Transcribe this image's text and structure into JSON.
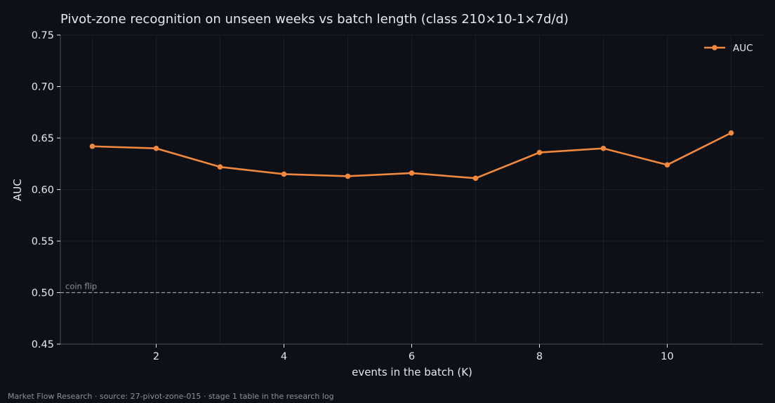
{
  "chart_data": {
    "type": "line",
    "title": "Pivot-zone recognition on unseen weeks vs batch length (class 210×10-1×7d/d)",
    "xlabel": "events in the batch (K)",
    "ylabel": "AUC",
    "xlim": [
      0.5,
      11.5
    ],
    "ylim": [
      0.45,
      0.75
    ],
    "xticks": [
      2,
      4,
      6,
      8,
      10
    ],
    "yticks": [
      0.45,
      0.5,
      0.55,
      0.6,
      0.65,
      0.7,
      0.75
    ],
    "ytick_labels": [
      "0.45",
      "0.50",
      "0.55",
      "0.60",
      "0.65",
      "0.70",
      "0.75"
    ],
    "grid": true,
    "legend_position": "top-right",
    "series": [
      {
        "name": "AUC",
        "color": "#f0883e",
        "marker": "circle",
        "x": [
          1,
          2,
          3,
          4,
          5,
          6,
          7,
          8,
          9,
          10,
          11
        ],
        "y": [
          0.642,
          0.64,
          0.622,
          0.615,
          0.613,
          0.616,
          0.611,
          0.636,
          0.64,
          0.624,
          0.655
        ]
      }
    ],
    "reference_line": {
      "y": 0.5,
      "label": "coin flip",
      "style": "dashed",
      "color": "#9aa0aa"
    }
  },
  "footer": "Market Flow Research · source: 27-pivot-zone-015 · stage 1 table in the research log",
  "colors": {
    "background": "#0d1017",
    "text": "#e6e8ee",
    "muted": "#8b919c",
    "grid": "#1a1e27",
    "axis": "#4a4f59",
    "accent": "#f0883e"
  }
}
